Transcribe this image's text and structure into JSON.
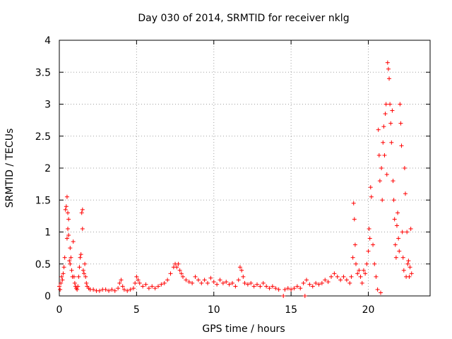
{
  "chart_data": {
    "type": "scatter",
    "title": "Day 030 of 2014, SRMTID for receiver nklg",
    "xlabel": "GPS time / hours",
    "ylabel": "SRMTID / TECUs",
    "xlim": [
      0,
      24
    ],
    "ylim": [
      0,
      4
    ],
    "xticks": [
      0,
      5,
      10,
      15,
      20
    ],
    "xtick_labels": [
      "0",
      "5",
      "10",
      "15",
      "20"
    ],
    "yticks": [
      0,
      0.5,
      1,
      1.5,
      2,
      2.5,
      3,
      3.5,
      4
    ],
    "ytick_labels": [
      "0",
      "0.5",
      "1",
      "1.5",
      "2",
      "2.5",
      "3",
      "3.5",
      "4"
    ],
    "grid": true,
    "marker": "+",
    "series": [
      {
        "name": "SRMTID",
        "color": "#ff0000",
        "points": [
          [
            0.0,
            0.15
          ],
          [
            0.05,
            0.1
          ],
          [
            0.1,
            0.2
          ],
          [
            0.15,
            0.3
          ],
          [
            0.2,
            0.25
          ],
          [
            0.25,
            0.35
          ],
          [
            0.3,
            0.45
          ],
          [
            0.35,
            0.6
          ],
          [
            0.4,
            1.35
          ],
          [
            0.45,
            1.4
          ],
          [
            0.5,
            1.55
          ],
          [
            0.5,
            0.9
          ],
          [
            0.55,
            1.3
          ],
          [
            0.55,
            1.05
          ],
          [
            0.6,
            0.95
          ],
          [
            0.6,
            1.2
          ],
          [
            0.65,
            0.55
          ],
          [
            0.7,
            0.5
          ],
          [
            0.7,
            0.75
          ],
          [
            0.75,
            0.6
          ],
          [
            0.8,
            0.4
          ],
          [
            0.85,
            0.3
          ],
          [
            0.9,
            0.85
          ],
          [
            0.95,
            0.3
          ],
          [
            1.0,
            0.2
          ],
          [
            1.05,
            0.15
          ],
          [
            1.1,
            0.12
          ],
          [
            1.15,
            0.1
          ],
          [
            1.2,
            0.15
          ],
          [
            1.25,
            0.3
          ],
          [
            1.3,
            0.45
          ],
          [
            1.35,
            0.6
          ],
          [
            1.4,
            0.65
          ],
          [
            1.45,
            1.3
          ],
          [
            1.5,
            1.35
          ],
          [
            1.5,
            1.05
          ],
          [
            1.55,
            0.4
          ],
          [
            1.6,
            0.35
          ],
          [
            1.65,
            0.5
          ],
          [
            1.7,
            0.3
          ],
          [
            1.75,
            0.2
          ],
          [
            1.8,
            0.15
          ],
          [
            1.9,
            0.12
          ],
          [
            2.0,
            0.1
          ],
          [
            2.2,
            0.1
          ],
          [
            2.4,
            0.08
          ],
          [
            2.6,
            0.08
          ],
          [
            2.8,
            0.1
          ],
          [
            3.0,
            0.1
          ],
          [
            3.2,
            0.08
          ],
          [
            3.4,
            0.1
          ],
          [
            3.6,
            0.08
          ],
          [
            3.8,
            0.12
          ],
          [
            3.9,
            0.2
          ],
          [
            4.0,
            0.25
          ],
          [
            4.1,
            0.15
          ],
          [
            4.2,
            0.1
          ],
          [
            4.4,
            0.08
          ],
          [
            4.6,
            0.1
          ],
          [
            4.8,
            0.12
          ],
          [
            4.9,
            0.2
          ],
          [
            5.0,
            0.3
          ],
          [
            5.1,
            0.25
          ],
          [
            5.2,
            0.2
          ],
          [
            5.4,
            0.15
          ],
          [
            5.6,
            0.18
          ],
          [
            5.8,
            0.12
          ],
          [
            6.0,
            0.15
          ],
          [
            6.2,
            0.12
          ],
          [
            6.4,
            0.15
          ],
          [
            6.6,
            0.18
          ],
          [
            6.8,
            0.2
          ],
          [
            7.0,
            0.25
          ],
          [
            7.2,
            0.35
          ],
          [
            7.4,
            0.45
          ],
          [
            7.5,
            0.5
          ],
          [
            7.6,
            0.45
          ],
          [
            7.7,
            0.5
          ],
          [
            7.8,
            0.4
          ],
          [
            7.9,
            0.35
          ],
          [
            8.0,
            0.3
          ],
          [
            8.2,
            0.25
          ],
          [
            8.4,
            0.22
          ],
          [
            8.6,
            0.2
          ],
          [
            8.8,
            0.3
          ],
          [
            9.0,
            0.25
          ],
          [
            9.2,
            0.2
          ],
          [
            9.4,
            0.25
          ],
          [
            9.6,
            0.2
          ],
          [
            9.8,
            0.28
          ],
          [
            10.0,
            0.22
          ],
          [
            10.2,
            0.18
          ],
          [
            10.4,
            0.25
          ],
          [
            10.6,
            0.2
          ],
          [
            10.8,
            0.22
          ],
          [
            11.0,
            0.18
          ],
          [
            11.2,
            0.2
          ],
          [
            11.4,
            0.15
          ],
          [
            11.6,
            0.25
          ],
          [
            11.7,
            0.45
          ],
          [
            11.8,
            0.4
          ],
          [
            11.9,
            0.3
          ],
          [
            12.0,
            0.2
          ],
          [
            12.2,
            0.18
          ],
          [
            12.4,
            0.2
          ],
          [
            12.6,
            0.15
          ],
          [
            12.8,
            0.18
          ],
          [
            13.0,
            0.15
          ],
          [
            13.2,
            0.2
          ],
          [
            13.4,
            0.15
          ],
          [
            13.6,
            0.12
          ],
          [
            13.8,
            0.15
          ],
          [
            14.0,
            0.12
          ],
          [
            14.2,
            0.1
          ],
          [
            14.5,
            0.0
          ],
          [
            14.6,
            0.1
          ],
          [
            14.8,
            0.12
          ],
          [
            15.0,
            0.1
          ],
          [
            15.2,
            0.12
          ],
          [
            15.4,
            0.15
          ],
          [
            15.6,
            0.12
          ],
          [
            15.8,
            0.2
          ],
          [
            15.9,
            0.0
          ],
          [
            16.0,
            0.25
          ],
          [
            16.2,
            0.18
          ],
          [
            16.4,
            0.15
          ],
          [
            16.6,
            0.2
          ],
          [
            16.8,
            0.18
          ],
          [
            17.0,
            0.2
          ],
          [
            17.2,
            0.25
          ],
          [
            17.4,
            0.22
          ],
          [
            17.6,
            0.3
          ],
          [
            17.8,
            0.35
          ],
          [
            18.0,
            0.3
          ],
          [
            18.2,
            0.25
          ],
          [
            18.4,
            0.3
          ],
          [
            18.6,
            0.25
          ],
          [
            18.8,
            0.2
          ],
          [
            18.9,
            0.3
          ],
          [
            19.0,
            0.6
          ],
          [
            19.05,
            1.45
          ],
          [
            19.1,
            1.2
          ],
          [
            19.15,
            0.8
          ],
          [
            19.2,
            0.5
          ],
          [
            19.3,
            0.35
          ],
          [
            19.4,
            0.4
          ],
          [
            19.5,
            0.3
          ],
          [
            19.6,
            0.2
          ],
          [
            19.7,
            0.4
          ],
          [
            19.8,
            0.35
          ],
          [
            19.9,
            0.5
          ],
          [
            20.0,
            0.7
          ],
          [
            20.05,
            1.05
          ],
          [
            20.1,
            0.9
          ],
          [
            20.15,
            1.7
          ],
          [
            20.2,
            1.55
          ],
          [
            20.3,
            0.8
          ],
          [
            20.4,
            0.5
          ],
          [
            20.5,
            0.3
          ],
          [
            20.6,
            0.1
          ],
          [
            20.65,
            2.6
          ],
          [
            20.7,
            2.2
          ],
          [
            20.75,
            1.8
          ],
          [
            20.8,
            0.05
          ],
          [
            20.85,
            2.0
          ],
          [
            20.9,
            1.5
          ],
          [
            20.95,
            2.4
          ],
          [
            21.0,
            2.65
          ],
          [
            21.05,
            2.2
          ],
          [
            21.1,
            2.85
          ],
          [
            21.15,
            3.0
          ],
          [
            21.2,
            1.9
          ],
          [
            21.25,
            3.65
          ],
          [
            21.3,
            3.55
          ],
          [
            21.35,
            3.4
          ],
          [
            21.4,
            3.0
          ],
          [
            21.45,
            2.7
          ],
          [
            21.5,
            2.4
          ],
          [
            21.55,
            2.9
          ],
          [
            21.6,
            1.8
          ],
          [
            21.65,
            1.5
          ],
          [
            21.7,
            1.2
          ],
          [
            21.75,
            0.8
          ],
          [
            21.8,
            0.6
          ],
          [
            21.85,
            1.1
          ],
          [
            21.9,
            1.3
          ],
          [
            21.95,
            0.9
          ],
          [
            22.0,
            0.7
          ],
          [
            22.05,
            3.0
          ],
          [
            22.1,
            2.7
          ],
          [
            22.15,
            2.35
          ],
          [
            22.2,
            1.0
          ],
          [
            22.25,
            0.6
          ],
          [
            22.3,
            0.4
          ],
          [
            22.35,
            2.0
          ],
          [
            22.4,
            1.6
          ],
          [
            22.45,
            0.3
          ],
          [
            22.5,
            1.0
          ],
          [
            22.55,
            0.5
          ],
          [
            22.6,
            0.55
          ],
          [
            22.65,
            0.3
          ],
          [
            22.7,
            0.45
          ],
          [
            22.75,
            1.05
          ],
          [
            22.8,
            0.35
          ]
        ]
      }
    ]
  }
}
